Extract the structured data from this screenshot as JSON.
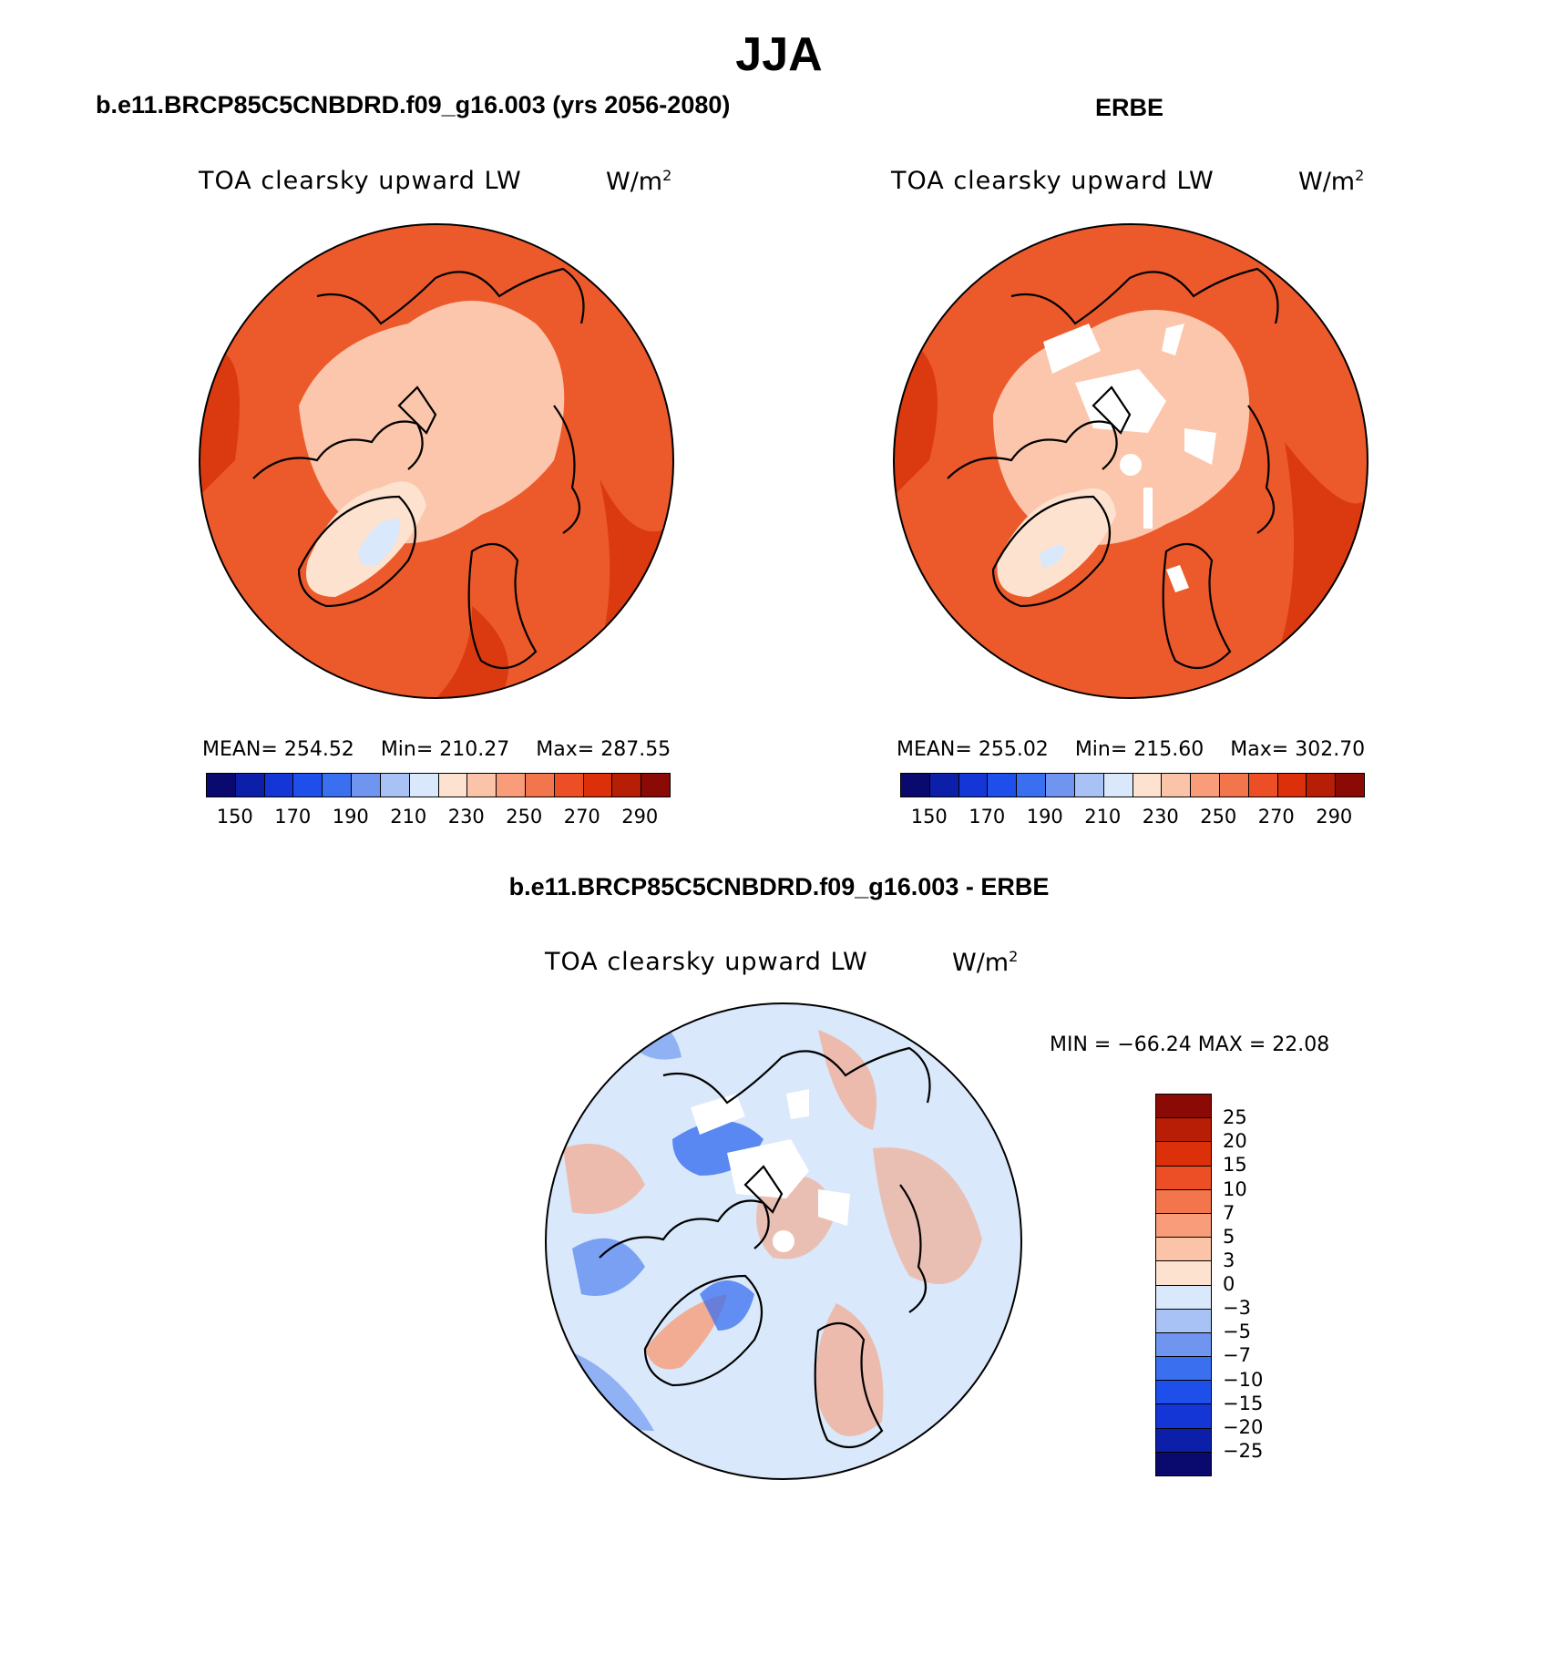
{
  "suptitle": "JJA",
  "panels": {
    "model": {
      "title": "b.e11.BRCP85C5CNBDRD.f09_g16.003 (yrs 2056-2080)",
      "variable": "TOA clearsky upward LW",
      "units_base": "W/m",
      "units_exp": "2",
      "mean_label": "MEAN=",
      "mean": "254.52",
      "min_label": "Min=",
      "min": "210.27",
      "max_label": "Max=",
      "max": "287.55"
    },
    "obs": {
      "title": "ERBE",
      "variable": "TOA clearsky upward LW",
      "units_base": "W/m",
      "units_exp": "2",
      "mean_label": "MEAN=",
      "mean": "255.02",
      "min_label": "Min=",
      "min": "215.60",
      "max_label": "Max=",
      "max": "302.70"
    },
    "diff": {
      "title": "b.e11.BRCP85C5CNBDRD.f09_g16.003 - ERBE",
      "variable": "TOA clearsky upward LW",
      "units_base": "W/m",
      "units_exp": "2",
      "minmax": "MIN = −66.24 MAX =  22.08"
    }
  },
  "abs_colorbar": {
    "colors": [
      "#0a0a6e",
      "#0c1fa8",
      "#1436d6",
      "#1e4fea",
      "#3a6ff0",
      "#6f95f0",
      "#a8c2f5",
      "#d9e8fa",
      "#fde2d0",
      "#fbc3a7",
      "#f89c79",
      "#f3754c",
      "#ec4f26",
      "#db3009",
      "#b81d05",
      "#8c0a05"
    ],
    "labels": [
      "150",
      "170",
      "190",
      "210",
      "230",
      "250",
      "270",
      "290"
    ]
  },
  "diff_colorbar": {
    "colors": [
      "#8c0a05",
      "#b81d05",
      "#db3009",
      "#ec4f26",
      "#f3754c",
      "#f89c79",
      "#fbc3a7",
      "#fde2d0",
      "#d9e8fa",
      "#a8c2f5",
      "#6f95f0",
      "#3a6ff0",
      "#1e4fea",
      "#1436d6",
      "#0c1fa8",
      "#0a0a6e"
    ],
    "labels": [
      "25",
      "20",
      "15",
      "10",
      "7",
      "5",
      "3",
      "0",
      "−3",
      "−5",
      "−7",
      "−10",
      "−15",
      "−20",
      "−25"
    ]
  },
  "map_colors": {
    "ocean_warm": "#ec5a2c",
    "arctic_cool": "#fbc6ab",
    "greenland": "#fde2d0",
    "greenland_core": "#d9e8fa",
    "deep_warm": "#db3a10",
    "diff_base": "#d9e8fa",
    "diff_pos": "#f89c79",
    "diff_neg": "#3a6ff0",
    "missing": "#ffffff"
  }
}
